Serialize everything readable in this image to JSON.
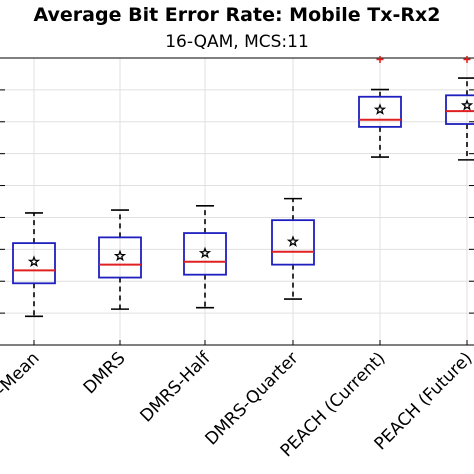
{
  "chart_data": {
    "type": "box",
    "title": "Average Bit Error Rate: Mobile Tx-Rx2",
    "subtitle": "16-QAM, MCS:11",
    "xlabel": "",
    "ylabel": "",
    "ylim": [
      0,
      1
    ],
    "grid": true,
    "categories": [
      "LS-Mean",
      "DMRS",
      "DMRS-Half",
      "DMRS-Quarter",
      "PEACH (Current)",
      "PEACH (Future)"
    ],
    "tick_labels_visible": [
      "-Mean",
      "DMRS",
      "DMRS-Half",
      "DMRS-Quarter",
      "PEACH (Current)",
      "PEACH (Future)"
    ],
    "boxes": [
      {
        "whisker_low": 0.1,
        "q1": 0.215,
        "median": 0.26,
        "q3": 0.355,
        "whisker_high": 0.46,
        "mean": 0.29,
        "outliers": []
      },
      {
        "whisker_low": 0.125,
        "q1": 0.235,
        "median": 0.28,
        "q3": 0.375,
        "whisker_high": 0.47,
        "mean": 0.31,
        "outliers": []
      },
      {
        "whisker_low": 0.13,
        "q1": 0.245,
        "median": 0.29,
        "q3": 0.39,
        "whisker_high": 0.485,
        "mean": 0.32,
        "outliers": []
      },
      {
        "whisker_low": 0.16,
        "q1": 0.28,
        "median": 0.325,
        "q3": 0.435,
        "whisker_high": 0.51,
        "mean": 0.36,
        "outliers": []
      },
      {
        "whisker_low": 0.655,
        "q1": 0.76,
        "median": 0.785,
        "q3": 0.865,
        "whisker_high": 0.89,
        "mean": 0.82,
        "outliers": [
          0.995
        ]
      },
      {
        "whisker_low": 0.645,
        "q1": 0.77,
        "median": 0.815,
        "q3": 0.87,
        "whisker_high": 0.93,
        "mean": 0.835,
        "outliers": [
          0.995
        ]
      }
    ],
    "colors": {
      "box": "#1f1fbf",
      "median": "#e02020",
      "whisker": "#000000",
      "outlier": "#e02020",
      "grid": "#e0e0e0"
    }
  }
}
